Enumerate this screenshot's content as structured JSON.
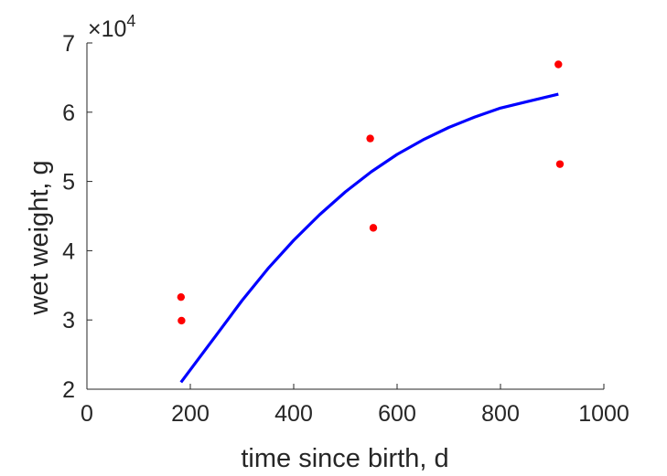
{
  "chart_data": {
    "type": "scatter",
    "title": "",
    "xlabel": "time since birth, d",
    "ylabel": "wet weight, g",
    "xlim": [
      0,
      1000
    ],
    "ylim": [
      20000,
      70000
    ],
    "xticks": [
      0,
      200,
      400,
      600,
      800,
      1000
    ],
    "yticks": [
      20000,
      30000,
      40000,
      50000,
      60000,
      70000
    ],
    "ytick_labels": [
      "2",
      "3",
      "4",
      "5",
      "6",
      "7"
    ],
    "y_multiplier": {
      "base": "10",
      "exponent": "4"
    },
    "grid": false,
    "legend": "none",
    "series": [
      {
        "kind": "scatter",
        "color": "#ff0000",
        "x": [
          182,
          183,
          548,
          554,
          912,
          915
        ],
        "y": [
          33300,
          29900,
          56200,
          43300,
          66900,
          52500
        ]
      },
      {
        "kind": "line",
        "color": "#0000ff",
        "x": [
          182,
          250,
          300,
          350,
          400,
          450,
          500,
          550,
          600,
          650,
          700,
          750,
          800,
          850,
          912
        ],
        "y": [
          21000,
          27800,
          32800,
          37400,
          41500,
          45200,
          48500,
          51400,
          53900,
          56000,
          57800,
          59300,
          60600,
          61500,
          62600
        ]
      }
    ]
  }
}
